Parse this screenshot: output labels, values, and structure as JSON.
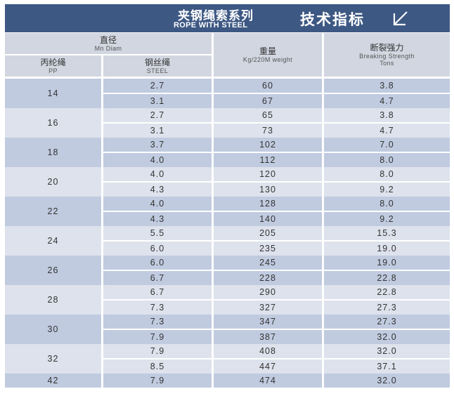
{
  "banner": {
    "title_cn": "夹钢绳索系列",
    "title_en": "ROPE WITH STEEL",
    "spec_cn": "技术指标"
  },
  "headers": {
    "diameter_cn": "直径",
    "diameter_en": "Mn Diam",
    "pp_cn": "丙纶绳",
    "pp_en": "PP",
    "steel_cn": "钢丝绳",
    "steel_en": "STEEL",
    "weight_cn": "重量",
    "weight_en": "Kg/220M weight",
    "strength_cn": "断裂强力",
    "strength_en": "Breaking Strength",
    "strength_unit": "Tons"
  },
  "groups": [
    {
      "pp": "14",
      "rows": [
        {
          "steel": "2.7",
          "weight": "60",
          "strength": "3.8"
        },
        {
          "steel": "3.1",
          "weight": "67",
          "strength": "4.7"
        }
      ]
    },
    {
      "pp": "16",
      "rows": [
        {
          "steel": "2.7",
          "weight": "65",
          "strength": "3.8"
        },
        {
          "steel": "3.1",
          "weight": "73",
          "strength": "4.7"
        }
      ]
    },
    {
      "pp": "18",
      "rows": [
        {
          "steel": "3.7",
          "weight": "102",
          "strength": "7.0"
        },
        {
          "steel": "4.0",
          "weight": "112",
          "strength": "8.0"
        }
      ]
    },
    {
      "pp": "20",
      "rows": [
        {
          "steel": "4.0",
          "weight": "120",
          "strength": "8.0"
        },
        {
          "steel": "4.3",
          "weight": "130",
          "strength": "9.2"
        }
      ]
    },
    {
      "pp": "22",
      "rows": [
        {
          "steel": "4.0",
          "weight": "128",
          "strength": "8.0"
        },
        {
          "steel": "4.3",
          "weight": "140",
          "strength": "9.2"
        }
      ]
    },
    {
      "pp": "24",
      "rows": [
        {
          "steel": "5.5",
          "weight": "205",
          "strength": "15.3"
        },
        {
          "steel": "6.0",
          "weight": "235",
          "strength": "19.0"
        }
      ]
    },
    {
      "pp": "26",
      "rows": [
        {
          "steel": "6.0",
          "weight": "245",
          "strength": "19.0"
        },
        {
          "steel": "6.7",
          "weight": "228",
          "strength": "22.8"
        }
      ]
    },
    {
      "pp": "28",
      "rows": [
        {
          "steel": "6.7",
          "weight": "290",
          "strength": "22.8"
        },
        {
          "steel": "7.3",
          "weight": "327",
          "strength": "27.3"
        }
      ]
    },
    {
      "pp": "30",
      "rows": [
        {
          "steel": "7.3",
          "weight": "347",
          "strength": "27.3"
        },
        {
          "steel": "7.9",
          "weight": "387",
          "strength": "32.0"
        }
      ]
    },
    {
      "pp": "32",
      "rows": [
        {
          "steel": "7.9",
          "weight": "408",
          "strength": "32.0"
        },
        {
          "steel": "8.5",
          "weight": "447",
          "strength": "37.1"
        }
      ]
    },
    {
      "pp": "42",
      "rows": [
        {
          "steel": "7.9",
          "weight": "474",
          "strength": "32.0"
        }
      ]
    }
  ],
  "colors": {
    "banner": "#3d5883",
    "header": "#d1d6e0",
    "group_dark": "#c0cbe0",
    "group_light": "#dde2ec",
    "text": "#333333"
  },
  "icons": {
    "banner_logo": "diagonal-arrow-icon"
  }
}
